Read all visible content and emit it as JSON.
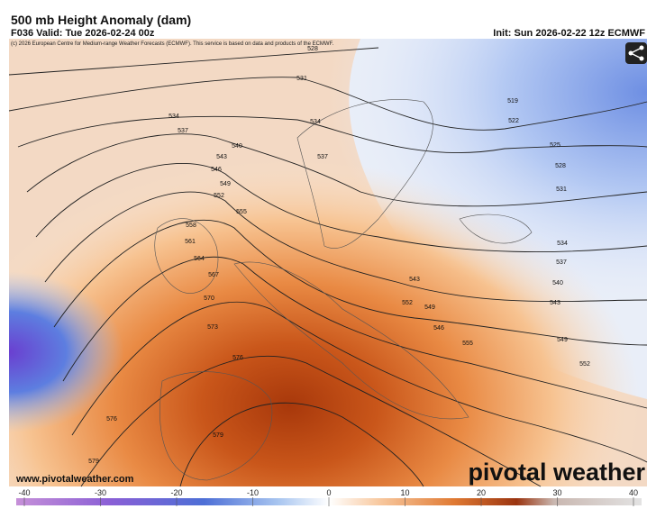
{
  "header": {
    "title": "500 mb Height Anomaly (dam)",
    "valid": "F036 Valid: Tue 2026-02-24 00z",
    "init": "Init: Sun 2026-02-22 12z ECMWF"
  },
  "map": {
    "copyright": "(c) 2026 European Centre for Medium-range Weather Forecasts (ECMWF). This service is based on data and products of the ECMWF.",
    "website": "www.pivotalweather.com",
    "logo": "pivotal weather",
    "contour_labels": [
      528,
      531,
      534,
      534,
      537,
      537,
      540,
      543,
      546,
      549,
      552,
      555,
      558,
      561,
      564,
      567,
      570,
      573,
      576,
      576,
      579,
      579,
      519,
      522,
      525,
      528,
      531,
      534,
      537,
      540,
      543,
      546,
      549,
      552,
      555,
      552,
      549,
      543
    ]
  },
  "colorbar": {
    "lim": [
      -40,
      40
    ],
    "ticks": [
      -40,
      -30,
      -20,
      -10,
      0,
      10,
      20,
      30,
      40
    ]
  }
}
